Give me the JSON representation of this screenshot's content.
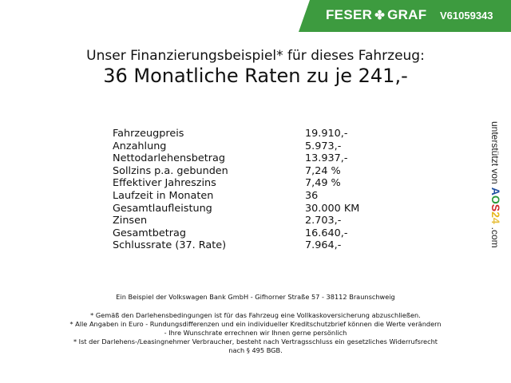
{
  "banner": {
    "brand": "FESER",
    "brand2": "GRAF",
    "vehicle_id": "V61059343",
    "color": "#3d9b3f"
  },
  "title": {
    "line1": "Unser Finanzierungsbeispiel* für dieses Fahrzeug:",
    "line2": "36 Monatliche Raten zu je 241,-"
  },
  "rows": [
    {
      "label": "Fahrzeugpreis",
      "value": "19.910,-"
    },
    {
      "label": "Anzahlung",
      "value": "5.973,-"
    },
    {
      "label": "Nettodarlehensbetrag",
      "value": "13.937,-"
    },
    {
      "label": "Sollzins p.a. gebunden",
      "value": "7,24 %"
    },
    {
      "label": "Effektiver Jahreszins",
      "value": "7,49 %"
    },
    {
      "label": "Laufzeit in Monaten",
      "value": "36"
    },
    {
      "label": "Gesamtlaufleistung",
      "value": "30.000 KM"
    },
    {
      "label": "Zinsen",
      "value": "2.703,-"
    },
    {
      "label": "Gesamtbetrag",
      "value": "16.640,-"
    },
    {
      "label": "Schlussrate (37. Rate)",
      "value": "7.964,-"
    }
  ],
  "side": {
    "prefix": "unterstützt von",
    "logo": "AOS24",
    "suffix": ".com"
  },
  "footer": {
    "bank": "Ein Beispiel der Volkswagen Bank GmbH - Gifhorner Straße 57 - 38112 Braunschweig",
    "notes": [
      "* Gemäß den Darlehensbedingungen ist für das Fahrzeug eine Vollkaskoversicherung abzuschließen.",
      "* Alle Angaben in Euro - Rundungsdifferenzen und ein individueller Kreditschutzbrief können die Werte verändern",
      "- Ihre Wunschrate errechnen wir Ihnen gerne persönlich",
      "* Ist der Darlehens-/Leasingnehmer Verbraucher, besteht nach Vertragsschluss ein gesetzliches Widerrufsrecht",
      "nach § 495 BGB."
    ]
  }
}
